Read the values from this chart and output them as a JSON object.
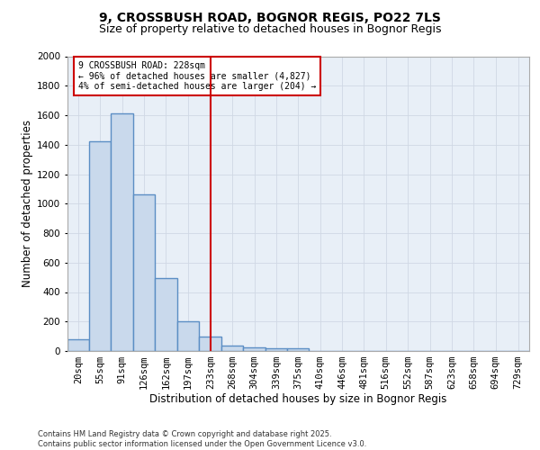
{
  "title1": "9, CROSSBUSH ROAD, BOGNOR REGIS, PO22 7LS",
  "title2": "Size of property relative to detached houses in Bognor Regis",
  "xlabel": "Distribution of detached houses by size in Bognor Regis",
  "ylabel": "Number of detached properties",
  "bin_labels": [
    "20sqm",
    "55sqm",
    "91sqm",
    "126sqm",
    "162sqm",
    "197sqm",
    "233sqm",
    "268sqm",
    "304sqm",
    "339sqm",
    "375sqm",
    "410sqm",
    "446sqm",
    "481sqm",
    "516sqm",
    "552sqm",
    "587sqm",
    "623sqm",
    "658sqm",
    "694sqm",
    "729sqm"
  ],
  "bin_edges": [
    2.5,
    37.5,
    72.5,
    108.5,
    143.5,
    179.5,
    215.5,
    251.5,
    286.5,
    322.5,
    357.5,
    392.5,
    428.5,
    463.5,
    499.5,
    534.5,
    570.5,
    605.5,
    641.5,
    676.5,
    712.5,
    748.5
  ],
  "bar_heights": [
    80,
    1420,
    1610,
    1060,
    495,
    200,
    100,
    35,
    25,
    20,
    20,
    0,
    0,
    0,
    0,
    0,
    0,
    0,
    0,
    0,
    0
  ],
  "bar_color": "#c9d9ec",
  "bar_edge_color": "#5b8ec4",
  "bar_linewidth": 1.0,
  "red_line_x": 233,
  "ylim": [
    0,
    2000
  ],
  "yticks": [
    0,
    200,
    400,
    600,
    800,
    1000,
    1200,
    1400,
    1600,
    1800,
    2000
  ],
  "annotation_text": "9 CROSSBUSH ROAD: 228sqm\n← 96% of detached houses are smaller (4,827)\n4% of semi-detached houses are larger (204) →",
  "annotation_box_color": "#ffffff",
  "annotation_box_edge": "#cc0000",
  "grid_color": "#d0d8e4",
  "bg_color": "#e8eff7",
  "footer_text": "Contains HM Land Registry data © Crown copyright and database right 2025.\nContains public sector information licensed under the Open Government Licence v3.0.",
  "title1_fontsize": 10,
  "title2_fontsize": 9,
  "xlabel_fontsize": 8.5,
  "ylabel_fontsize": 8.5,
  "tick_fontsize": 7.5,
  "annotation_fontsize": 7,
  "footer_fontsize": 6
}
